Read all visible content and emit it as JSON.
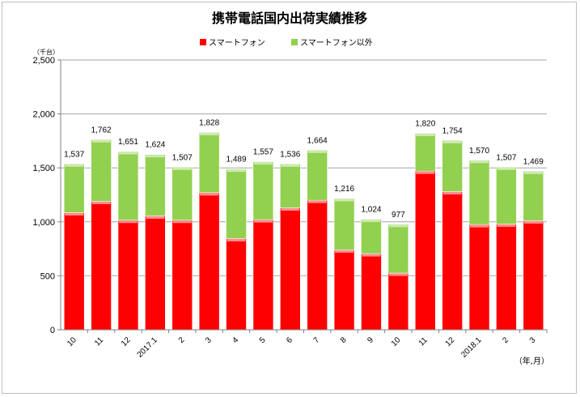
{
  "chart_data": {
    "type": "bar",
    "stacked": true,
    "title": "携帯電話国内出荷実績推移",
    "unit_label": "（千台）",
    "x_unit_label": "（年,月）",
    "categories": [
      "10",
      "11",
      "12",
      "2017.1",
      "2",
      "3",
      "4",
      "5",
      "6",
      "7",
      "8",
      "9",
      "10",
      "11",
      "12",
      "2018.1",
      "2",
      "3"
    ],
    "series": [
      {
        "name": "スマートフォン",
        "color": "#ff0000",
        "values": [
          1085,
          1190,
          1015,
          1055,
          1015,
          1270,
          845,
          1020,
          1130,
          1200,
          740,
          705,
          525,
          1470,
          1280,
          975,
          980,
          1010
        ]
      },
      {
        "name": "スマートフォン以外",
        "color": "#92d050",
        "values": [
          452,
          572,
          636,
          569,
          492,
          558,
          644,
          537,
          406,
          464,
          476,
          319,
          452,
          350,
          474,
          595,
          527,
          459
        ]
      }
    ],
    "totals": [
      1537,
      1762,
      1651,
      1624,
      1507,
      1828,
      1489,
      1557,
      1536,
      1664,
      1216,
      1024,
      977,
      1820,
      1754,
      1570,
      1507,
      1469
    ],
    "total_labels": [
      "1,537",
      "1,762",
      "1,651",
      "1,624",
      "1,507",
      "1,828",
      "1,489",
      "1,557",
      "1,536",
      "1,664",
      "1,216",
      "1,024",
      "977",
      "1,820",
      "1,754",
      "1,570",
      "1,507",
      "1,469"
    ],
    "y_ticks": [
      0,
      500,
      1000,
      1500,
      2000,
      2500
    ],
    "y_tick_labels": [
      "0",
      "500",
      "1,000",
      "1,500",
      "2,000",
      "2,500"
    ],
    "ylim": [
      0,
      2500
    ],
    "grid": true,
    "legend_position": "top"
  }
}
